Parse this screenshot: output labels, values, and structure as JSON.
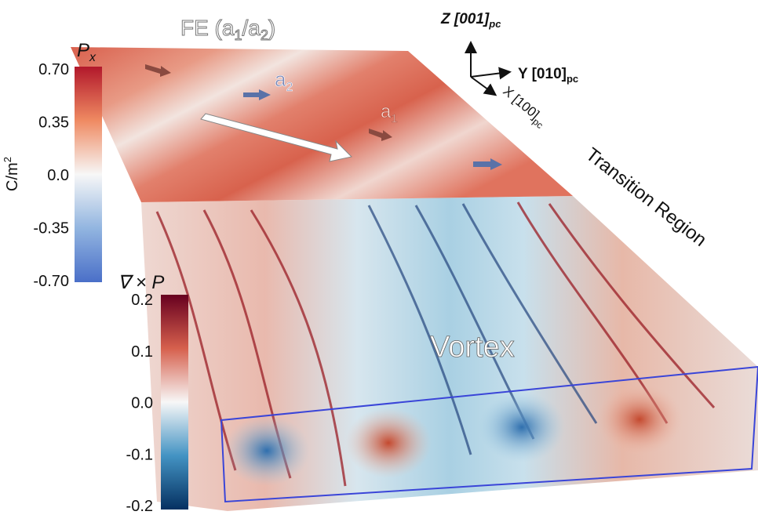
{
  "title": {
    "parts": [
      "FE (a",
      "1",
      "/a",
      "2",
      ")"
    ]
  },
  "domain_labels": {
    "a2": {
      "main": "a",
      "sub": "2"
    },
    "a1": {
      "main": "a",
      "sub": "1"
    }
  },
  "axes": {
    "z": {
      "label": "Z [001]",
      "sub": "pc"
    },
    "y": {
      "label": "Y [010]",
      "sub": "pc"
    },
    "x": {
      "label": "X [100]",
      "sub": "pc"
    }
  },
  "region_labels": {
    "transition": "Transition Region",
    "vortex": "Vortex"
  },
  "colorbars": [
    {
      "symbol": "P",
      "sub": "x",
      "ticks": [
        "0.70",
        "0.35",
        "0.0",
        "-0.35",
        "-0.70"
      ],
      "unit": "C/m",
      "sup": "2"
    },
    {
      "symbol": "∇ × P",
      "ticks": [
        "0.2",
        "0.1",
        "0.0",
        "-0.1",
        "-0.2"
      ]
    }
  ]
}
